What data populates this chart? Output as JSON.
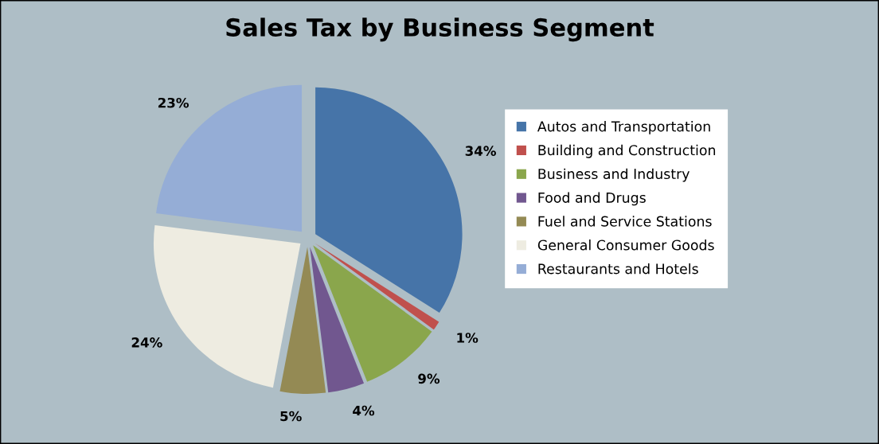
{
  "chart_data": {
    "type": "pie",
    "title": "Sales Tax by Business Segment",
    "categories": [
      "Autos and Transportation",
      "Building and Construction",
      "Business and Industry",
      "Food and Drugs",
      "Fuel and Service Stations",
      "General Consumer Goods",
      "Restaurants and Hotels"
    ],
    "values": [
      34,
      1,
      9,
      4,
      5,
      24,
      23
    ],
    "value_labels": [
      "34%",
      "1%",
      "9%",
      "4%",
      "5%",
      "24%",
      "23%"
    ],
    "colors": [
      "#4674a8",
      "#c0504d",
      "#8aa64c",
      "#71578f",
      "#948a54",
      "#eeece1",
      "#95add6"
    ],
    "legend": "right"
  }
}
